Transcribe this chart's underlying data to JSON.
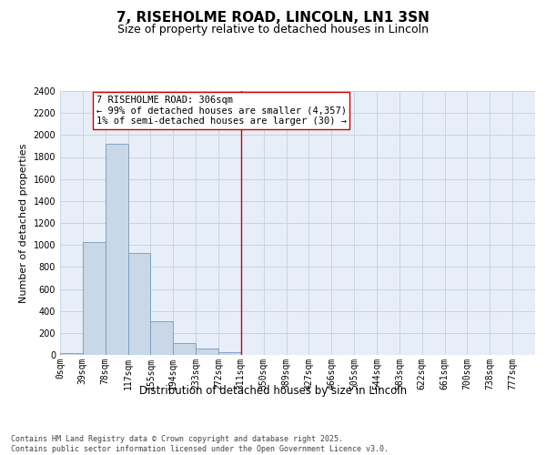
{
  "title": "7, RISEHOLME ROAD, LINCOLN, LN1 3SN",
  "subtitle": "Size of property relative to detached houses in Lincoln",
  "xlabel": "Distribution of detached houses by size in Lincoln",
  "ylabel": "Number of detached properties",
  "bin_labels": [
    "0sqm",
    "39sqm",
    "78sqm",
    "117sqm",
    "155sqm",
    "194sqm",
    "233sqm",
    "272sqm",
    "311sqm",
    "350sqm",
    "389sqm",
    "427sqm",
    "466sqm",
    "505sqm",
    "544sqm",
    "583sqm",
    "622sqm",
    "661sqm",
    "700sqm",
    "738sqm",
    "777sqm"
  ],
  "bar_values": [
    15,
    1025,
    1920,
    930,
    310,
    105,
    55,
    25,
    0,
    0,
    0,
    0,
    0,
    0,
    0,
    0,
    0,
    0,
    0,
    0,
    0
  ],
  "bar_color": "#c8d8e8",
  "bar_edge_color": "#7799bb",
  "grid_color": "#c8d4e4",
  "background_color": "#e8eef8",
  "vline_x": 8,
  "vline_color": "#cc0000",
  "annotation_text": "7 RISEHOLME ROAD: 306sqm\n← 99% of detached houses are smaller (4,357)\n1% of semi-detached houses are larger (30) →",
  "annotation_box_color": "#ffffff",
  "annotation_box_edge": "#cc0000",
  "ylim": [
    0,
    2400
  ],
  "yticks": [
    0,
    200,
    400,
    600,
    800,
    1000,
    1200,
    1400,
    1600,
    1800,
    2000,
    2200,
    2400
  ],
  "footer_text": "Contains HM Land Registry data © Crown copyright and database right 2025.\nContains public sector information licensed under the Open Government Licence v3.0.",
  "title_fontsize": 11,
  "subtitle_fontsize": 9,
  "xlabel_fontsize": 8.5,
  "ylabel_fontsize": 8,
  "tick_fontsize": 7,
  "annotation_fontsize": 7.5,
  "footer_fontsize": 6
}
